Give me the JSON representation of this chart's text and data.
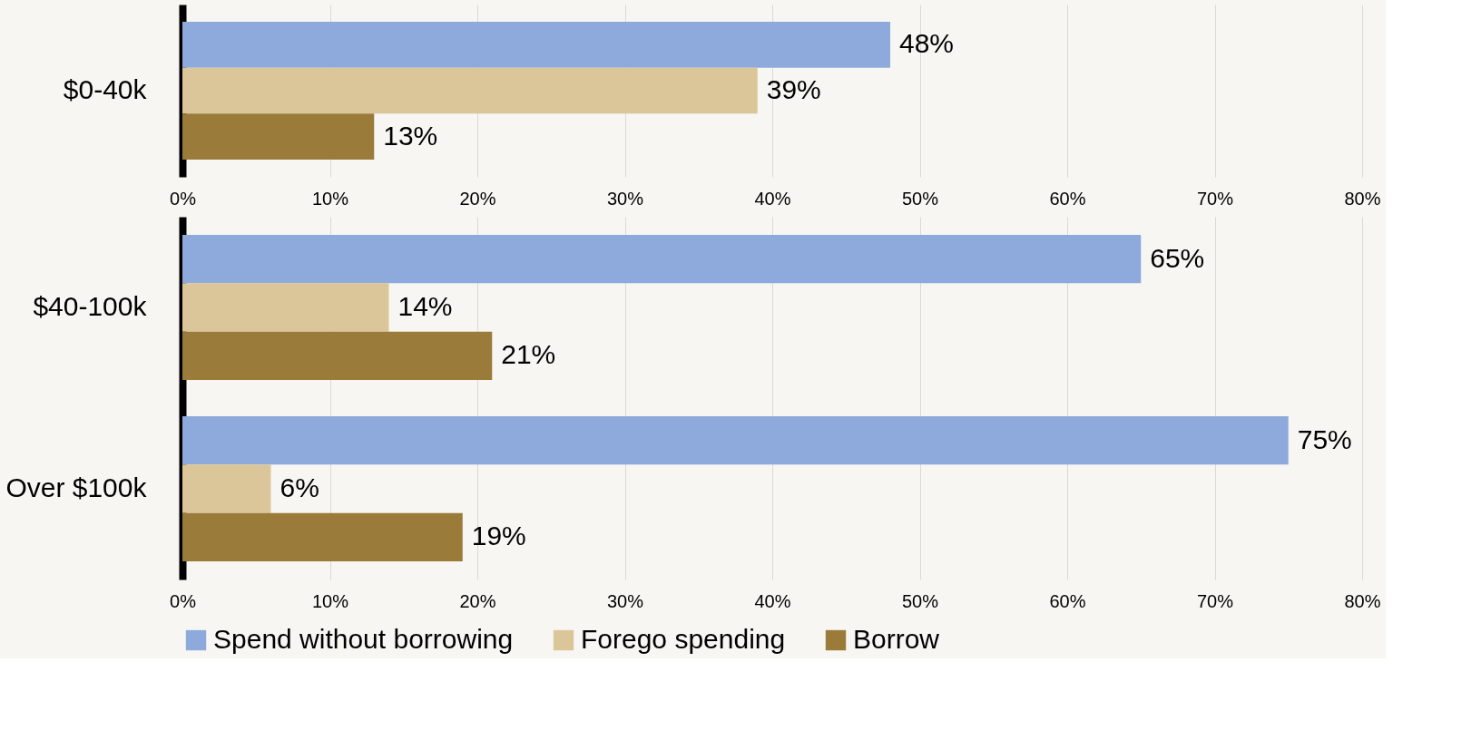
{
  "chart_data": [
    {
      "type": "bar",
      "orientation": "horizontal",
      "categories": [
        "$0-40k"
      ],
      "series": [
        {
          "color": "#8eaadc",
          "values": [
            48
          ],
          "value_labels": [
            "48%"
          ]
        },
        {
          "color": "#dbc69a",
          "values": [
            39
          ],
          "value_labels": [
            "39%"
          ]
        },
        {
          "color": "#9a7b3a",
          "values": [
            13
          ],
          "value_labels": [
            "13%"
          ]
        }
      ],
      "xlim": [
        0,
        80
      ],
      "xticks": [
        {
          "value": 0,
          "label": "0%"
        },
        {
          "value": 10,
          "label": "10%"
        },
        {
          "value": 20,
          "label": "20%"
        },
        {
          "value": 30,
          "label": "30%"
        },
        {
          "value": 40,
          "label": "40%"
        },
        {
          "value": 50,
          "label": "50%"
        },
        {
          "value": 60,
          "label": "60%"
        },
        {
          "value": 70,
          "label": "70%"
        },
        {
          "value": 80,
          "label": "80%"
        }
      ],
      "grid": "x",
      "legend": false
    },
    {
      "type": "bar",
      "orientation": "horizontal",
      "categories": [
        "$40-100k",
        "Over $100k"
      ],
      "series": [
        {
          "name": "Spend without borrowing",
          "color": "#8eaadc",
          "values": [
            65,
            75
          ],
          "value_labels": [
            "65%",
            "75%"
          ]
        },
        {
          "name": "Forego spending",
          "color": "#dbc69a",
          "values": [
            14,
            6
          ],
          "value_labels": [
            "14%",
            "6%"
          ]
        },
        {
          "name": "Borrow",
          "color": "#9a7b3a",
          "values": [
            21,
            19
          ],
          "value_labels": [
            "21%",
            "19%"
          ]
        }
      ],
      "xlim": [
        0,
        80
      ],
      "xticks": [
        {
          "value": 0,
          "label": "0%"
        },
        {
          "value": 10,
          "label": "10%"
        },
        {
          "value": 20,
          "label": "20%"
        },
        {
          "value": 30,
          "label": "30%"
        },
        {
          "value": 40,
          "label": "40%"
        },
        {
          "value": 50,
          "label": "50%"
        },
        {
          "value": 60,
          "label": "60%"
        },
        {
          "value": 70,
          "label": "70%"
        },
        {
          "value": 80,
          "label": "80%"
        }
      ],
      "grid": "x",
      "legend": "bottom"
    }
  ]
}
